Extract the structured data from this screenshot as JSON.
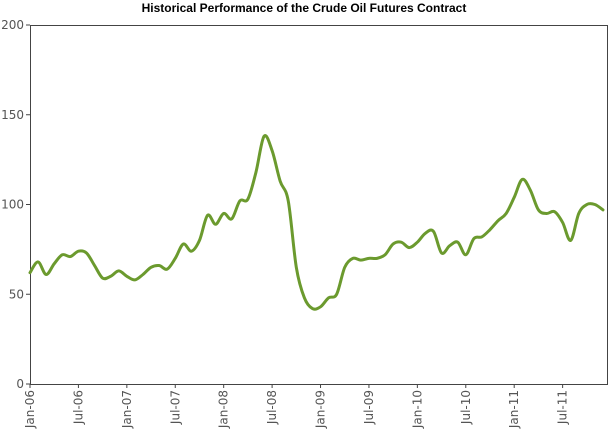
{
  "chart_data": {
    "type": "line",
    "title": "Historical Performance of the Crude Oil Futures Contract",
    "xlabel": "",
    "ylabel": "",
    "ylim": [
      0,
      200
    ],
    "yticks": [
      0,
      50,
      100,
      150,
      200
    ],
    "xticks": [
      "Jan-06",
      "Jul-06",
      "Jan-07",
      "Jul-07",
      "Jan-08",
      "Jul-08",
      "Jan-09",
      "Jul-09",
      "Jan-10",
      "Jul-10",
      "Jan-11",
      "Jul-11"
    ],
    "grid": false,
    "legend": "none",
    "series": [
      {
        "color": "#6b9a2e",
        "x": [
          "2006-01",
          "2006-02",
          "2006-03",
          "2006-04",
          "2006-05",
          "2006-06",
          "2006-07",
          "2006-08",
          "2006-09",
          "2006-10",
          "2006-11",
          "2006-12",
          "2007-01",
          "2007-02",
          "2007-03",
          "2007-04",
          "2007-05",
          "2007-06",
          "2007-07",
          "2007-08",
          "2007-09",
          "2007-10",
          "2007-11",
          "2007-12",
          "2008-01",
          "2008-02",
          "2008-03",
          "2008-04",
          "2008-05",
          "2008-06",
          "2008-07",
          "2008-08",
          "2008-09",
          "2008-10",
          "2008-11",
          "2008-12",
          "2009-01",
          "2009-02",
          "2009-03",
          "2009-04",
          "2009-05",
          "2009-06",
          "2009-07",
          "2009-08",
          "2009-09",
          "2009-10",
          "2009-11",
          "2009-12",
          "2010-01",
          "2010-02",
          "2010-03",
          "2010-04",
          "2010-05",
          "2010-06",
          "2010-07",
          "2010-08",
          "2010-09",
          "2010-10",
          "2010-11",
          "2010-12",
          "2011-01",
          "2011-02",
          "2011-03",
          "2011-04",
          "2011-05",
          "2011-06",
          "2011-07",
          "2011-08",
          "2011-09",
          "2011-10",
          "2011-11",
          "2011-12"
        ],
        "values": [
          62,
          68,
          61,
          67,
          72,
          71,
          74,
          73,
          66,
          59,
          60,
          63,
          60,
          58,
          61,
          65,
          66,
          64,
          70,
          78,
          74,
          80,
          94,
          89,
          95,
          92,
          102,
          103,
          118,
          138,
          130,
          113,
          102,
          65,
          48,
          42,
          43,
          48,
          50,
          65,
          70,
          69,
          70,
          70,
          72,
          78,
          79,
          76,
          79,
          84,
          85,
          73,
          77,
          79,
          72,
          81,
          82,
          86,
          91,
          95,
          104,
          114,
          108,
          97,
          95,
          96,
          90,
          80,
          95,
          100,
          100,
          97
        ]
      }
    ]
  }
}
